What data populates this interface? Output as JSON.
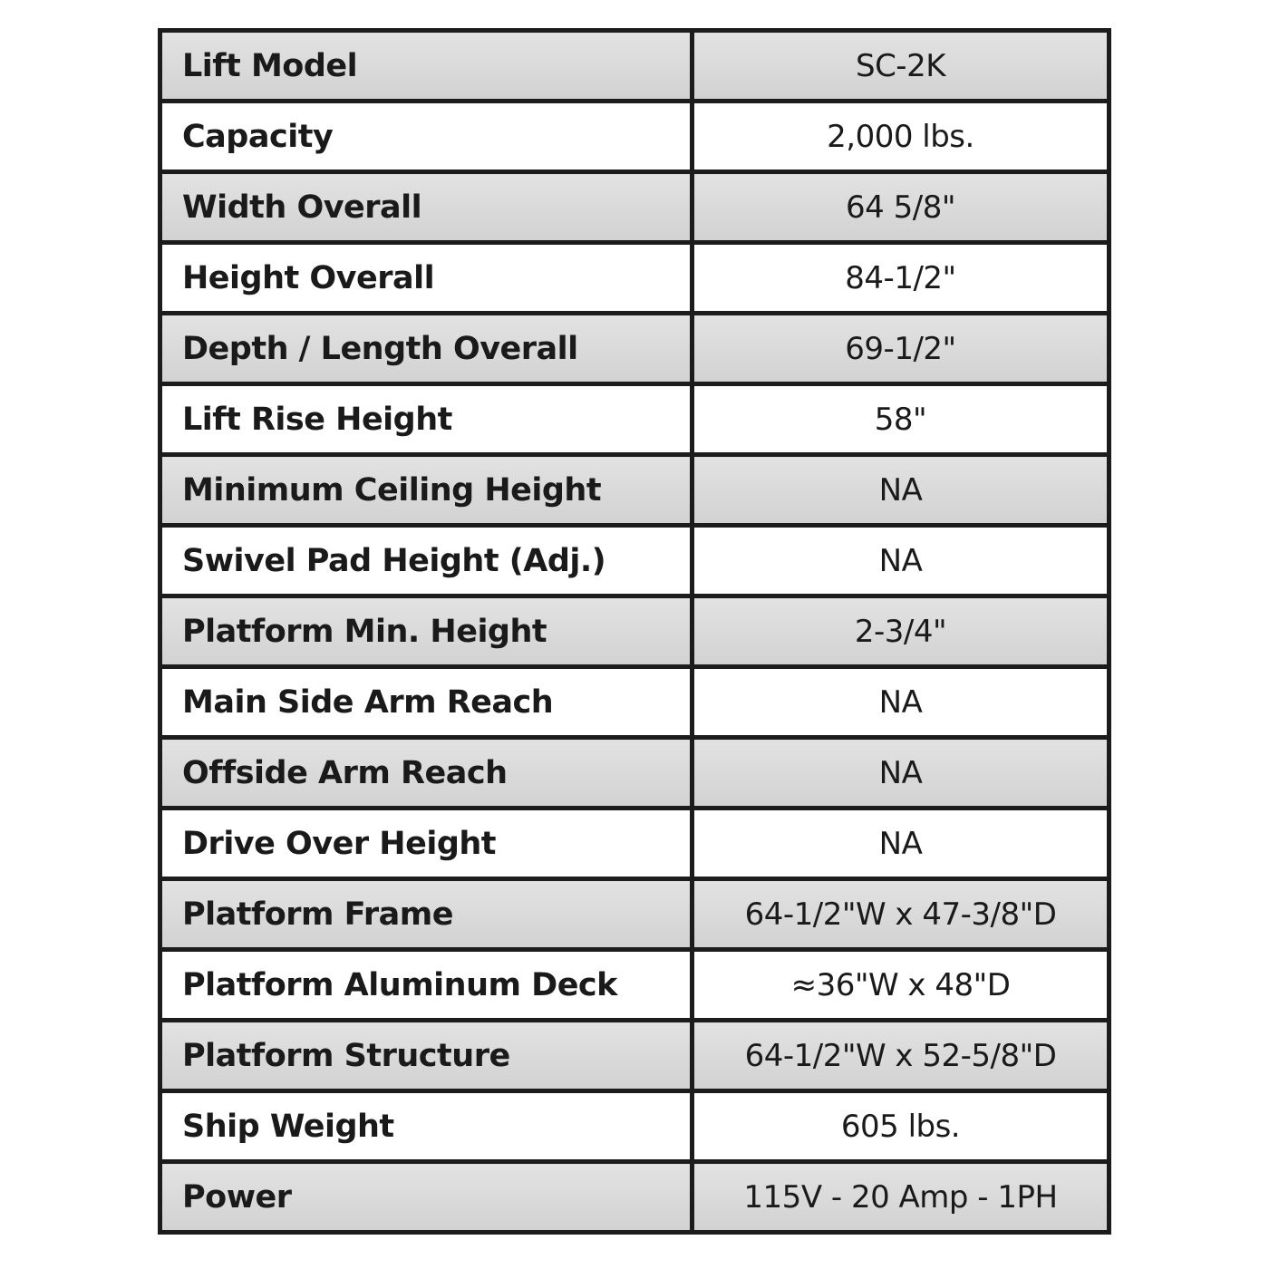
{
  "spec_table": {
    "rows": [
      {
        "label": "Lift Model",
        "value": "SC-2K"
      },
      {
        "label": "Capacity",
        "value": "2,000 lbs."
      },
      {
        "label": "Width Overall",
        "value": "64 5/8\""
      },
      {
        "label": "Height Overall",
        "value": "84-1/2\""
      },
      {
        "label": "Depth / Length Overall",
        "value": "69-1/2\""
      },
      {
        "label": "Lift Rise Height",
        "value": "58\""
      },
      {
        "label": "Minimum Ceiling Height",
        "value": "NA"
      },
      {
        "label": "Swivel Pad Height (Adj.)",
        "value": "NA"
      },
      {
        "label": "Platform Min. Height",
        "value": "2-3/4\""
      },
      {
        "label": "Main Side Arm Reach",
        "value": "NA"
      },
      {
        "label": "Offside Arm Reach",
        "value": "NA"
      },
      {
        "label": "Drive Over Height",
        "value": "NA"
      },
      {
        "label": "Platform Frame",
        "value": "64-1/2\"W x 47-3/8\"D"
      },
      {
        "label": "Platform Aluminum Deck",
        "value": "≈36\"W x 48\"D"
      },
      {
        "label": "Platform Structure",
        "value": "64-1/2\"W x 52-5/8\"D"
      },
      {
        "label": "Ship Weight",
        "value": "605 lbs."
      },
      {
        "label": "Power",
        "value": "115V - 20 Amp - 1PH"
      }
    ]
  },
  "colors": {
    "row_gray": "#d9d9d9",
    "row_white": "#ffffff",
    "border": "#1c1c1c"
  }
}
